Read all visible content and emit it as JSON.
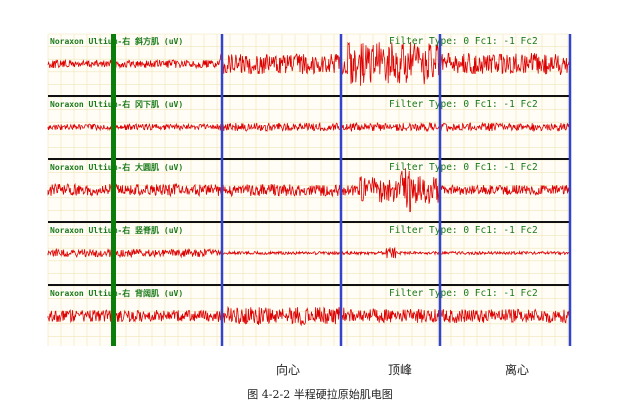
{
  "channels": [
    {
      "label": "Noraxon Ultium-右 斜方肌 (uV)",
      "filter": "Filter Type: 0 Fc1: -1  Fc2"
    },
    {
      "label": "Noraxon Ultium-右 冈下肌 (uV)",
      "filter": "Filter Type: 0 Fc1: -1  Fc2"
    },
    {
      "label": "Noraxon Ultium-右 大圆肌 (uV)",
      "filter": "Filter Type: 0 Fc1: -1  Fc2"
    },
    {
      "label": "Noraxon Ultium-右 竖脊肌 (uV)",
      "filter": "Filter Type: 0 Fc1: -1  Fc2"
    },
    {
      "label": "Noraxon Ultium-右 背阔肌 (uV)",
      "filter": "Filter Type: 0 Fc1: -1  Fc2"
    }
  ],
  "phases": {
    "concentric": "向心",
    "peak": "顶峰",
    "eccentric": "离心"
  },
  "caption": "图 4-2-2 半程硬拉原始肌电图",
  "colors": {
    "signal": "#dd0000",
    "label": "#1a7a1a",
    "marker": "#3344cc",
    "cursor": "#0b7d0b",
    "grid": "#efe6b8",
    "separator": "#111111"
  }
}
